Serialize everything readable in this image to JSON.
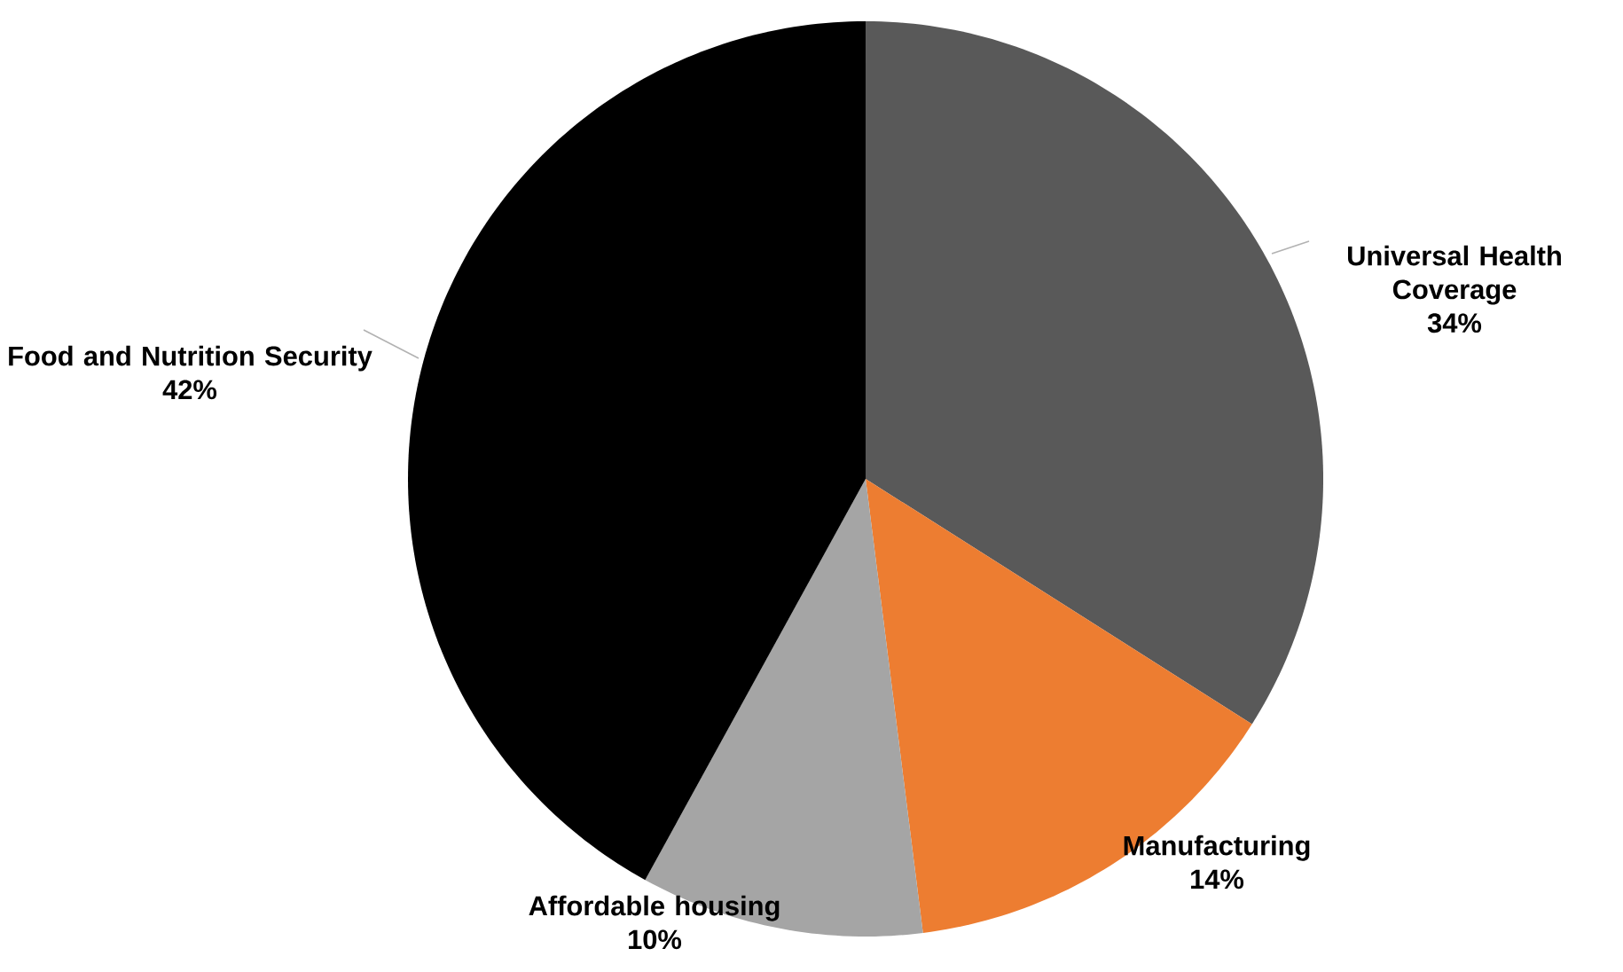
{
  "chart_data": {
    "type": "pie",
    "categories": [
      "Universal Health Coverage",
      "Manufacturing",
      "Affordable housing",
      "Food and Nutrition Security"
    ],
    "values": [
      34,
      14,
      10,
      42
    ],
    "colors": [
      "#595959",
      "#ed7d31",
      "#a5a5a5",
      "#000000"
    ],
    "value_labels": [
      "34%",
      "14%",
      "10%",
      "42%"
    ]
  }
}
